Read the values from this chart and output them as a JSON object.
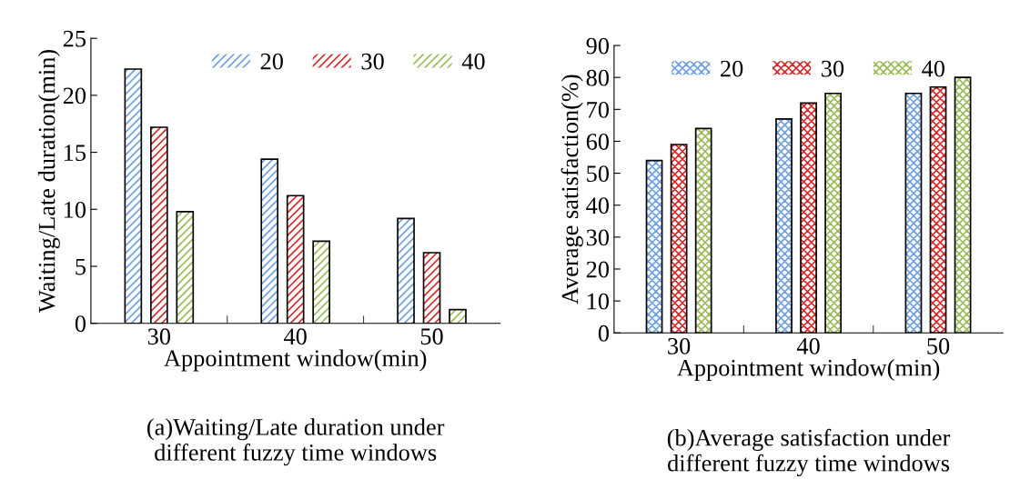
{
  "chart_data": [
    {
      "type": "bar",
      "title": "(a)Waiting/Late duration under different fuzzy time windows",
      "xlabel": "Appointment window(min)",
      "ylabel": "Waiting/Late duration(min)",
      "categories": [
        "30",
        "40",
        "50"
      ],
      "ylim": [
        0,
        25
      ],
      "yticks": [
        0,
        5,
        10,
        15,
        20,
        25
      ],
      "legend": "top right",
      "grid": false,
      "series": [
        {
          "name": "20",
          "color": "#6f9fe0",
          "values": [
            22.3,
            14.4,
            9.2
          ]
        },
        {
          "name": "30",
          "color": "#d42a2a",
          "values": [
            17.2,
            11.2,
            6.2
          ]
        },
        {
          "name": "40",
          "color": "#9bbb59",
          "values": [
            9.8,
            7.2,
            1.2
          ]
        }
      ]
    },
    {
      "type": "bar",
      "title": "(b)Average satisfaction under different fuzzy time windows",
      "xlabel": "Appointment window(min)",
      "ylabel": "Average satisfaction(%)",
      "categories": [
        "30",
        "40",
        "50"
      ],
      "ylim": [
        0,
        90
      ],
      "yticks": [
        0,
        10,
        20,
        30,
        40,
        50,
        60,
        70,
        80,
        90
      ],
      "legend": "top",
      "grid": false,
      "series": [
        {
          "name": "20",
          "color": "#6f9fe0",
          "values": [
            54,
            67,
            75
          ]
        },
        {
          "name": "30",
          "color": "#d42a2a",
          "values": [
            59,
            72,
            77
          ]
        },
        {
          "name": "40",
          "color": "#9bbb59",
          "values": [
            64,
            75,
            80
          ]
        }
      ]
    }
  ]
}
